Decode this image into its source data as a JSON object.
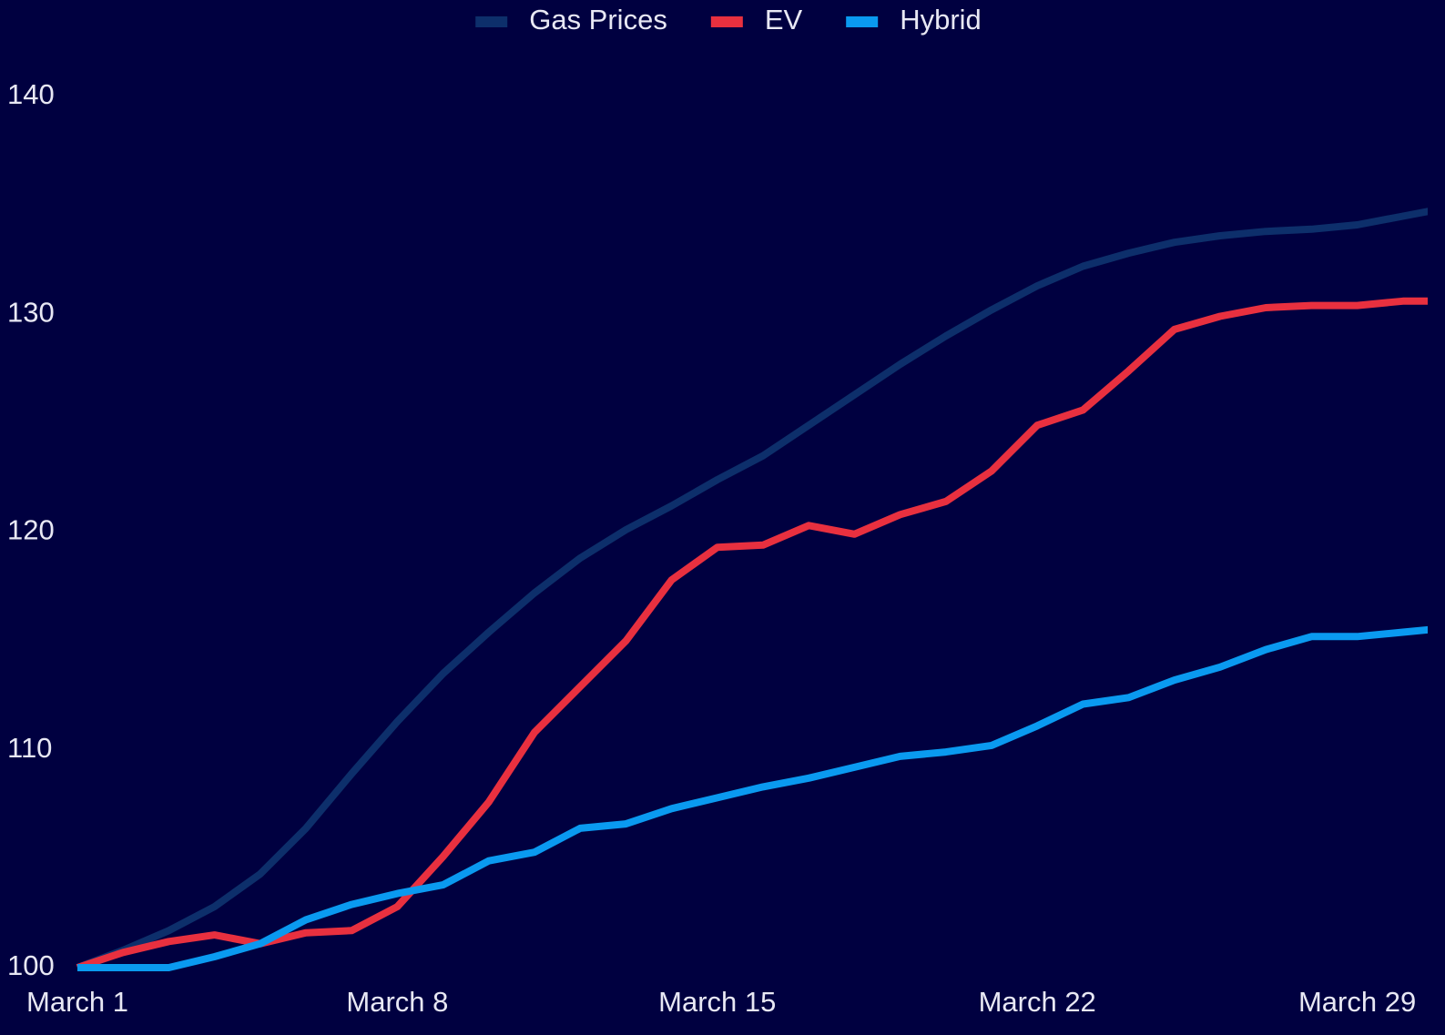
{
  "chart_data": {
    "type": "line",
    "categories": [
      "March 1",
      null,
      null,
      null,
      null,
      null,
      null,
      "March 8",
      null,
      null,
      null,
      null,
      null,
      null,
      "March 15",
      null,
      null,
      null,
      null,
      null,
      null,
      "March 22",
      null,
      null,
      null,
      null,
      null,
      null,
      "March 29",
      null,
      null
    ],
    "series": [
      {
        "name": "Gas Prices",
        "color": "#0d2f6b",
        "values": [
          100,
          100.8,
          101.7,
          102.8,
          104.3,
          106.4,
          108.9,
          111.3,
          113.5,
          115.4,
          117.2,
          118.8,
          120.1,
          121.2,
          122.4,
          123.5,
          124.9,
          126.3,
          127.7,
          129.0,
          130.2,
          131.3,
          132.2,
          132.8,
          133.3,
          133.6,
          133.8,
          133.9,
          134.1,
          134.5,
          134.9
        ]
      },
      {
        "name": "EV",
        "color": "#e8303f",
        "values": [
          100,
          100.7,
          101.2,
          101.5,
          101.1,
          101.6,
          101.7,
          102.8,
          105.1,
          107.6,
          110.8,
          112.9,
          115.0,
          117.8,
          119.3,
          119.4,
          120.3,
          119.9,
          120.8,
          121.4,
          122.8,
          124.9,
          125.6,
          127.4,
          129.3,
          129.9,
          130.3,
          130.4,
          130.4,
          130.6,
          130.6
        ]
      },
      {
        "name": "Hybrid",
        "color": "#0a9af0",
        "values": [
          100,
          100,
          100,
          100.5,
          101.1,
          102.2,
          102.9,
          103.4,
          103.8,
          104.9,
          105.3,
          106.4,
          106.6,
          107.3,
          107.8,
          108.3,
          108.7,
          109.2,
          109.7,
          109.9,
          110.2,
          111.1,
          112.1,
          112.4,
          113.2,
          113.8,
          114.6,
          115.2,
          115.2,
          115.4,
          115.6
        ]
      }
    ],
    "ylim": [
      100,
      142
    ],
    "yticks": [
      100,
      110,
      120,
      130,
      140
    ],
    "legend": "top",
    "grid": false
  }
}
